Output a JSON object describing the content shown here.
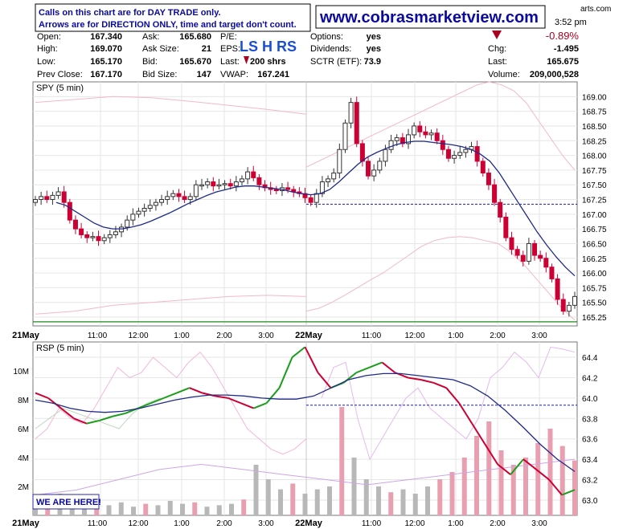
{
  "header": {
    "note_lines": [
      "Calls on this chart are for DAY TRADE only.",
      "Arrows are for DIRECTION ONLY, time and target don't count."
    ],
    "website": "www.cobrasmarketview.com",
    "corner_brand": "arts.com",
    "time": "3:52 pm",
    "change_pct": "-0.89%",
    "lshrs": "LS H RS",
    "last_shares": "200 shrs",
    "stats": [
      {
        "label": "Open:",
        "value": "167.340"
      },
      {
        "label": "High:",
        "value": "169.070"
      },
      {
        "label": "Low:",
        "value": "165.170"
      },
      {
        "label": "Prev Close:",
        "value": "167.170"
      },
      {
        "label": "Ask:",
        "value": "165.680"
      },
      {
        "label": "Ask Size:",
        "value": "21"
      },
      {
        "label": "Bid:",
        "value": "165.670"
      },
      {
        "label": "Bid Size:",
        "value": "147"
      },
      {
        "label": "P/E:",
        "value": ""
      },
      {
        "label": "EPS:",
        "value": ""
      },
      {
        "label": "Last:",
        "value": ""
      },
      {
        "label": "VWAP:",
        "value": "167.241"
      },
      {
        "label": "Options:",
        "value": "yes"
      },
      {
        "label": "Dividends:",
        "value": "yes"
      },
      {
        "label": "SCTR (ETF):",
        "value": "73.9"
      },
      {
        "label": "Chg:",
        "value": "-1.495"
      },
      {
        "label": "Last:",
        "value": "165.675"
      },
      {
        "label": "Volume:",
        "value": "209,000,528"
      }
    ]
  },
  "colors": {
    "up": "#1b9e1b",
    "down": "#cc0033",
    "ma": "#1f2a8a",
    "band": "#f2b8c8",
    "dashed": "#1a1ab8",
    "volume": "#b8b8b8",
    "volume_down": "#e8a0b0",
    "navy_text": "#0a0aa0",
    "arrow": "#aa0022"
  },
  "chart_data": [
    {
      "type": "candlestick",
      "title": "SPY (5 min)",
      "xlabels": [
        "21May",
        "11:00",
        "12:00",
        "1:00",
        "2:00",
        "3:00",
        "22May",
        "11:00",
        "12:00",
        "1:00",
        "2:00",
        "3:00"
      ],
      "ylim": [
        165.1,
        169.25
      ],
      "yticks": [
        "169.00",
        "168.75",
        "168.50",
        "168.25",
        "168.00",
        "167.75",
        "167.50",
        "167.25",
        "167.00",
        "166.75",
        "166.50",
        "166.25",
        "166.00",
        "165.75",
        "165.50",
        "165.25"
      ],
      "reference_line": 167.17,
      "green_line": 165.17,
      "close_series": [
        167.25,
        167.3,
        167.25,
        167.32,
        167.38,
        167.2,
        166.9,
        166.75,
        166.65,
        166.6,
        166.62,
        166.55,
        166.6,
        166.65,
        166.7,
        166.78,
        166.9,
        167.0,
        167.05,
        167.1,
        167.15,
        167.2,
        167.25,
        167.3,
        167.35,
        167.3,
        167.25,
        167.3,
        167.5,
        167.5,
        167.55,
        167.48,
        167.5,
        167.52,
        167.48,
        167.55,
        167.6,
        167.72,
        167.62,
        167.5,
        167.45,
        167.42,
        167.4,
        167.45,
        167.42,
        167.38,
        167.35,
        167.28,
        167.2,
        167.35,
        167.55,
        167.6,
        167.7,
        168.1,
        168.55,
        168.9,
        168.2,
        167.9,
        167.65,
        167.75,
        167.9,
        168.1,
        168.25,
        168.3,
        168.2,
        168.35,
        168.5,
        168.4,
        168.35,
        168.38,
        168.25,
        168.1,
        167.95,
        168.0,
        168.05,
        168.1,
        168.15,
        167.9,
        167.7,
        167.5,
        167.2,
        166.95,
        166.6,
        166.4,
        166.3,
        166.2,
        166.5,
        166.3,
        166.25,
        166.1,
        165.9,
        165.55,
        165.35,
        165.45,
        165.6
      ],
      "ma_series": [
        167.2,
        167.15,
        167.05,
        166.95,
        166.85,
        166.78,
        166.75,
        166.75,
        166.78,
        166.82,
        166.88,
        166.95,
        167.02,
        167.1,
        167.18,
        167.25,
        167.32,
        167.38,
        167.42,
        167.46,
        167.48,
        167.48,
        167.46,
        167.44,
        167.42,
        167.38,
        167.35,
        167.33,
        167.35,
        167.42,
        167.55,
        167.7,
        167.85,
        167.97,
        168.05,
        168.12,
        168.18,
        168.22,
        168.24,
        168.24,
        168.22,
        168.2,
        168.18,
        168.15,
        168.1,
        168.02,
        167.9,
        167.7,
        167.45,
        167.2,
        166.95,
        166.7,
        166.48,
        166.28,
        166.1,
        165.95
      ],
      "band_upper": [
        167.8,
        167.9,
        168.0,
        168.1,
        168.2,
        168.3,
        168.4,
        168.5,
        168.6,
        168.7,
        168.8,
        168.9,
        169.0,
        169.1,
        169.2,
        169.25,
        169.2,
        169.1,
        168.9,
        168.6,
        168.3,
        168.0,
        167.75
      ],
      "band_lower": [
        165.35,
        165.4,
        165.5,
        165.62,
        165.75,
        165.88,
        166.0,
        166.15,
        166.3,
        166.45,
        166.55,
        166.6,
        166.62,
        166.6,
        166.55,
        166.5,
        166.35,
        166.15,
        165.9,
        165.65,
        165.4,
        165.2
      ]
    },
    {
      "type": "line",
      "title": "RSP (5 min)",
      "xlabels": [
        "21May",
        "11:00",
        "12:00",
        "1:00",
        "2:00",
        "3:00",
        "22May",
        "11:00",
        "12:00",
        "1:00",
        "2:00",
        "3:00"
      ],
      "ylim": [
        62.85,
        64.55
      ],
      "yticks_right": [
        "64.4",
        "64.2",
        "64.0",
        "63.8",
        "63.6",
        "63.4",
        "63.2",
        "63.0"
      ],
      "yticks_left": [
        "10M",
        "8M",
        "6M",
        "4M",
        "2M"
      ],
      "reference_line": 63.93,
      "price_series": [
        64.05,
        64.0,
        63.9,
        63.8,
        63.75,
        63.78,
        63.82,
        63.85,
        63.9,
        63.95,
        64.0,
        64.05,
        64.1,
        64.05,
        64.02,
        64.0,
        63.95,
        63.9,
        63.95,
        64.1,
        64.4,
        64.5,
        64.25,
        64.1,
        64.15,
        64.25,
        64.3,
        64.35,
        64.25,
        64.2,
        64.18,
        64.15,
        64.1,
        63.95,
        63.75,
        63.55,
        63.35,
        63.25,
        63.4,
        63.3,
        63.2,
        63.05,
        63.1
      ],
      "ma_series": [
        63.98,
        63.95,
        63.9,
        63.87,
        63.86,
        63.87,
        63.9,
        63.94,
        63.98,
        64.01,
        64.03,
        64.03,
        64.02,
        64.0,
        63.99,
        63.99,
        64.02,
        64.1,
        64.18,
        64.22,
        64.24,
        64.24,
        64.22,
        64.2,
        64.18,
        64.12,
        64.02,
        63.88,
        63.72,
        63.55,
        63.4,
        63.28
      ],
      "volume_series_m": [
        1.2,
        0.9,
        1.5,
        1.1,
        0.8,
        1.0,
        0.7,
        0.9,
        0.6,
        0.8,
        0.7,
        1.0,
        0.8,
        0.9,
        0.6,
        0.7,
        0.8,
        1.1,
        3.5,
        2.5,
        1.8,
        2.2,
        1.5,
        1.8,
        2.0,
        7.5,
        4.0,
        2.5,
        2.0,
        1.6,
        1.8,
        1.5,
        2.0,
        2.5,
        3.0,
        4.0,
        5.5,
        6.5,
        4.5,
        3.5,
        4.0,
        5.0,
        6.0,
        4.8,
        3.8
      ]
    }
  ],
  "badge": "WE ARE HERE!"
}
